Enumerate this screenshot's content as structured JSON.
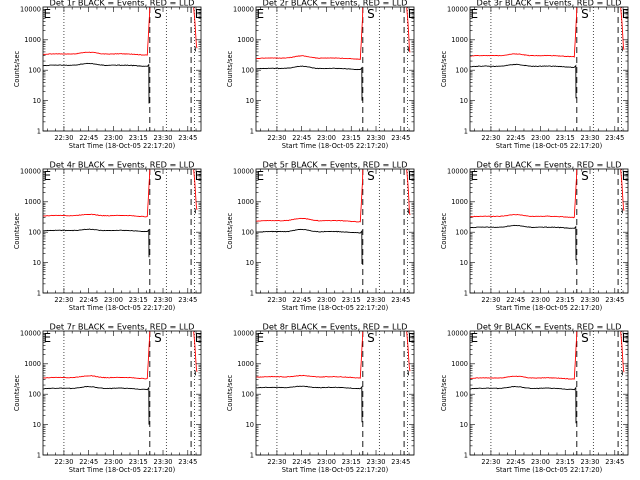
{
  "chart_data": {
    "type": "line",
    "layout": "3x3 grid",
    "x_axis": {
      "ticks": [
        "22:30",
        "22:45",
        "23:00",
        "23:15",
        "23:30",
        "23:45"
      ],
      "tick_minutes": [
        30,
        45,
        60,
        75,
        90,
        105
      ],
      "range_minutes": [
        17.33,
        113
      ],
      "label": "Start Time (18-Oct-05 22:17:20)"
    },
    "y_axis": {
      "scale": "log",
      "range": [
        1,
        12000
      ],
      "ticks": [
        "1",
        "10",
        "100",
        "1000",
        "10000"
      ],
      "label": "Counts/sec"
    },
    "markers": {
      "dotted_minutes": [
        30,
        92,
        109
      ],
      "dashed_minutes": [
        82,
        107
      ],
      "annotation": "SE",
      "annotation_letters": [
        "E",
        "S",
        "E"
      ],
      "annotation_minutes": [
        17.6,
        84.6,
        109.2
      ]
    },
    "series_legend": {
      "black": "Events",
      "red": "LLD"
    },
    "colors": {
      "events": "#000000",
      "lld": "#ff0000"
    },
    "panels": [
      {
        "title": "Det 1r BLACK = Events, RED = LLD",
        "events_level": 140,
        "lld_level": 330,
        "bump": 1.25,
        "end_drop": 8
      },
      {
        "title": "Det 2r BLACK = Events, RED = LLD",
        "events_level": 110,
        "lld_level": 240,
        "bump": 1.3,
        "end_drop": 10
      },
      {
        "title": "Det 3r BLACK = Events, RED = LLD",
        "events_level": 130,
        "lld_level": 290,
        "bump": 1.25,
        "end_drop": 12
      },
      {
        "title": "Det 4r BLACK = Events, RED = LLD",
        "events_level": 110,
        "lld_level": 340,
        "bump": 1.2,
        "end_drop": 15
      },
      {
        "title": "Det 5r BLACK = Events, RED = LLD",
        "events_level": 100,
        "lld_level": 230,
        "bump": 1.3,
        "end_drop": 9
      },
      {
        "title": "Det 6r BLACK = Events, RED = LLD",
        "events_level": 140,
        "lld_level": 320,
        "bump": 1.25,
        "end_drop": 12
      },
      {
        "title": "Det 7r BLACK = Events, RED = LLD",
        "events_level": 150,
        "lld_level": 340,
        "bump": 1.25,
        "end_drop": 10
      },
      {
        "title": "Det 8r BLACK = Events, RED = LLD",
        "events_level": 160,
        "lld_level": 360,
        "bump": 1.2,
        "end_drop": 12
      },
      {
        "title": "Det 9r BLACK = Events, RED = LLD",
        "events_level": 150,
        "lld_level": 330,
        "bump": 1.25,
        "end_drop": 11
      }
    ]
  }
}
